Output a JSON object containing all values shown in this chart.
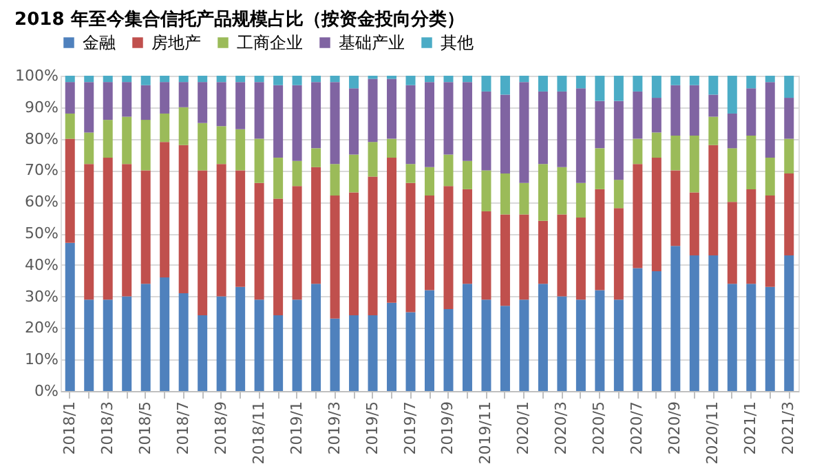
{
  "chart_data": {
    "type": "bar",
    "stacked": true,
    "title": "2018 年至今集合信托产品规模占比（按资金投向分类）",
    "categories": [
      "2018/1",
      null,
      "2018/3",
      null,
      "2018/5",
      null,
      "2018/7",
      null,
      "2018/9",
      null,
      "2018/11",
      null,
      "2019/1",
      null,
      "2019/3",
      null,
      "2019/5",
      null,
      "2019/7",
      null,
      "2019/9",
      null,
      "2019/11",
      null,
      "2020/1",
      null,
      "2020/3",
      null,
      "2020/5",
      null,
      "2020/7",
      null,
      "2020/9",
      null,
      "2020/11",
      null,
      "2021/1",
      null,
      "2021/3"
    ],
    "series": [
      {
        "name": "金融",
        "color": "#4f81bd",
        "values": [
          47,
          29,
          29,
          30,
          34,
          36,
          31,
          24,
          30,
          33,
          29,
          24,
          29,
          34,
          23,
          24,
          24,
          28,
          25,
          32,
          26,
          34,
          29,
          27,
          29,
          34,
          30,
          29,
          32,
          29,
          39,
          38,
          46,
          43,
          43,
          34,
          34,
          33,
          43
        ]
      },
      {
        "name": "房地产",
        "color": "#c0504d",
        "values": [
          33,
          43,
          45,
          42,
          36,
          43,
          47,
          46,
          42,
          37,
          37,
          37,
          36,
          37,
          39,
          39,
          44,
          46,
          41,
          30,
          39,
          30,
          28,
          29,
          27,
          20,
          26,
          26,
          32,
          29,
          33,
          36,
          24,
          20,
          35,
          26,
          30,
          29,
          26
        ]
      },
      {
        "name": "工商企业",
        "color": "#9bbb59",
        "values": [
          8,
          10,
          12,
          15,
          16,
          9,
          12,
          15,
          12,
          13,
          14,
          13,
          8,
          6,
          10,
          12,
          11,
          6,
          6,
          9,
          10,
          9,
          13,
          13,
          10,
          18,
          15,
          11,
          13,
          9,
          8,
          8,
          11,
          18,
          9,
          17,
          17,
          12,
          11
        ]
      },
      {
        "name": "基础产业",
        "color": "#8064a2",
        "values": [
          10,
          16,
          12,
          11,
          11,
          10,
          8,
          13,
          14,
          15,
          18,
          23,
          24,
          21,
          26,
          21,
          20,
          19,
          25,
          27,
          23,
          25,
          25,
          25,
          32,
          23,
          24,
          30,
          15,
          25,
          15,
          11,
          16,
          16,
          7,
          11,
          15,
          24,
          13
        ]
      },
      {
        "name": "其他",
        "color": "#4bacc6",
        "values": [
          2,
          2,
          2,
          2,
          3,
          2,
          2,
          2,
          2,
          2,
          2,
          3,
          3,
          2,
          2,
          4,
          1,
          1,
          3,
          2,
          2,
          2,
          5,
          6,
          2,
          5,
          5,
          4,
          8,
          8,
          5,
          7,
          3,
          3,
          6,
          12,
          4,
          2,
          7
        ]
      }
    ],
    "ylim": [
      0,
      100
    ],
    "yticks": [
      {
        "value": 0,
        "label": "0%"
      },
      {
        "value": 10,
        "label": "10%"
      },
      {
        "value": 20,
        "label": "20%"
      },
      {
        "value": 30,
        "label": "30%"
      },
      {
        "value": 40,
        "label": "40%"
      },
      {
        "value": 50,
        "label": "50%"
      },
      {
        "value": 60,
        "label": "60%"
      },
      {
        "value": 70,
        "label": "70%"
      },
      {
        "value": 80,
        "label": "80%"
      },
      {
        "value": 90,
        "label": "90%"
      },
      {
        "value": 100,
        "label": "100%"
      }
    ],
    "grid": "y",
    "legend": "top"
  }
}
